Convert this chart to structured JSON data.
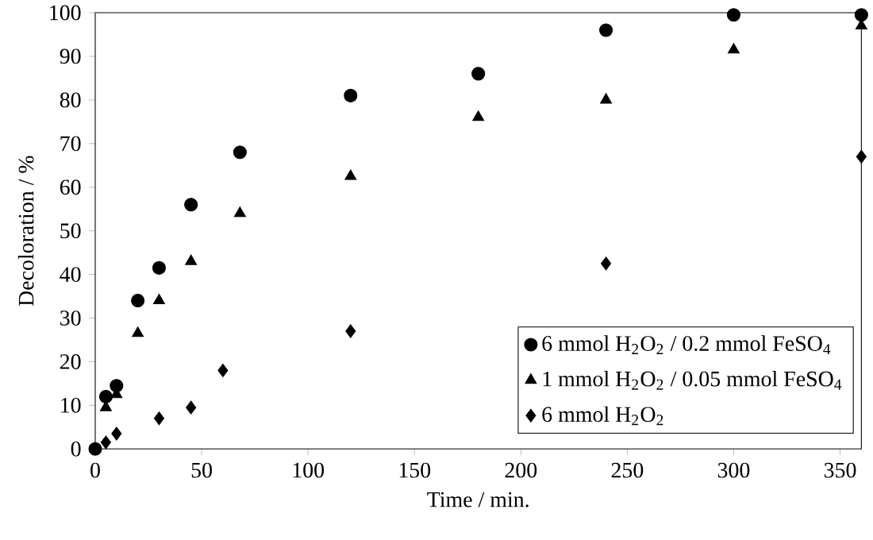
{
  "chart_data": {
    "type": "scatter",
    "xlabel": "Time / min.",
    "ylabel": "Decoloration / %",
    "x": [
      0,
      5,
      10,
      20,
      30,
      45,
      68,
      120,
      180,
      240,
      300,
      360
    ],
    "series": [
      {
        "name": "6 mmol H$_{2}$O$_{2}$ / 0.2 mmol FeSO$_{4}$",
        "color": "#000000",
        "marker": "circle",
        "values": [
          0,
          12,
          14.5,
          34,
          41.5,
          56,
          68,
          81,
          86,
          96,
          99.5,
          99.5
        ]
      },
      {
        "name": "1 mmol H$_{2}$O$_{2}$ / 0.05 mmol FeSO$_{4}$",
        "color": "#000000",
        "marker": "triangle",
        "values": [
          null,
          9.5,
          12.5,
          26.5,
          34,
          43,
          54,
          62.5,
          76,
          80,
          91.5,
          97
        ]
      },
      {
        "name": "6 mmol H$_{2}$O$_{2}$",
        "color": "#000000",
        "marker": "diamond",
        "x": [
          5,
          10,
          30,
          45,
          60,
          120,
          240,
          360
        ],
        "values": [
          1.5,
          3.5,
          7,
          9.5,
          18,
          27,
          42.5,
          67
        ]
      }
    ],
    "xlim": [
      0,
      360
    ],
    "ylim": [
      0,
      100
    ],
    "xticks": [
      0,
      50,
      100,
      150,
      200,
      250,
      300,
      350
    ],
    "yticks": [
      0,
      10,
      20,
      30,
      40,
      50,
      60,
      70,
      80,
      90,
      100
    ],
    "grid": false,
    "legend": "bottom right"
  }
}
